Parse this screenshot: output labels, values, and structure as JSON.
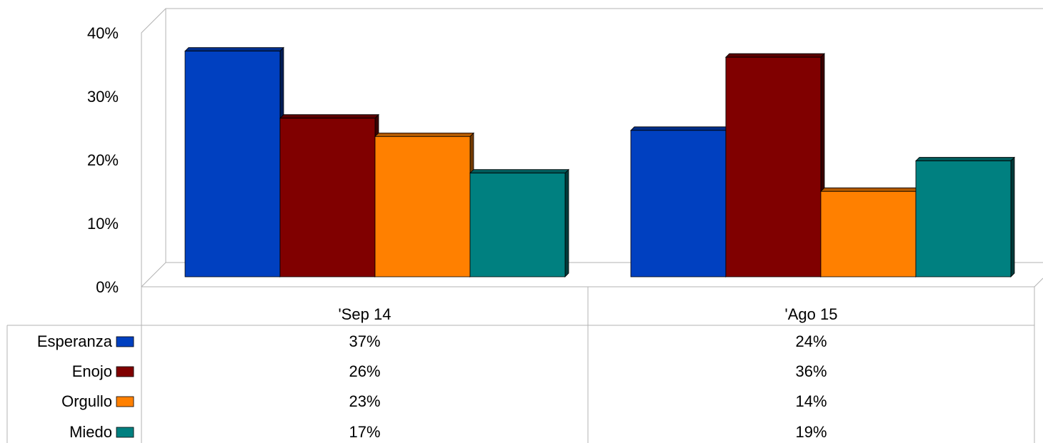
{
  "chart_data": {
    "type": "bar",
    "categories": [
      "'Sep 14",
      "'Ago 15"
    ],
    "series": [
      {
        "name": "Esperanza",
        "values": [
          37,
          24
        ],
        "labels": [
          "37%",
          "24%"
        ],
        "color": "#0040C0"
      },
      {
        "name": "Enojo",
        "values": [
          26,
          36
        ],
        "labels": [
          "26%",
          "36%"
        ],
        "color": "#800000"
      },
      {
        "name": "Orgullo",
        "values": [
          23,
          14
        ],
        "labels": [
          "23%",
          "14%"
        ],
        "color": "#FF8000"
      },
      {
        "name": "Miedo",
        "values": [
          17,
          19
        ],
        "labels": [
          "17%",
          "19%"
        ],
        "color": "#008080"
      }
    ],
    "yticks": [
      "0%",
      "10%",
      "20%",
      "30%",
      "40%"
    ],
    "ylim": [
      0,
      40
    ],
    "grid": false,
    "legend": "data-table-left",
    "style": "3d-bar"
  }
}
